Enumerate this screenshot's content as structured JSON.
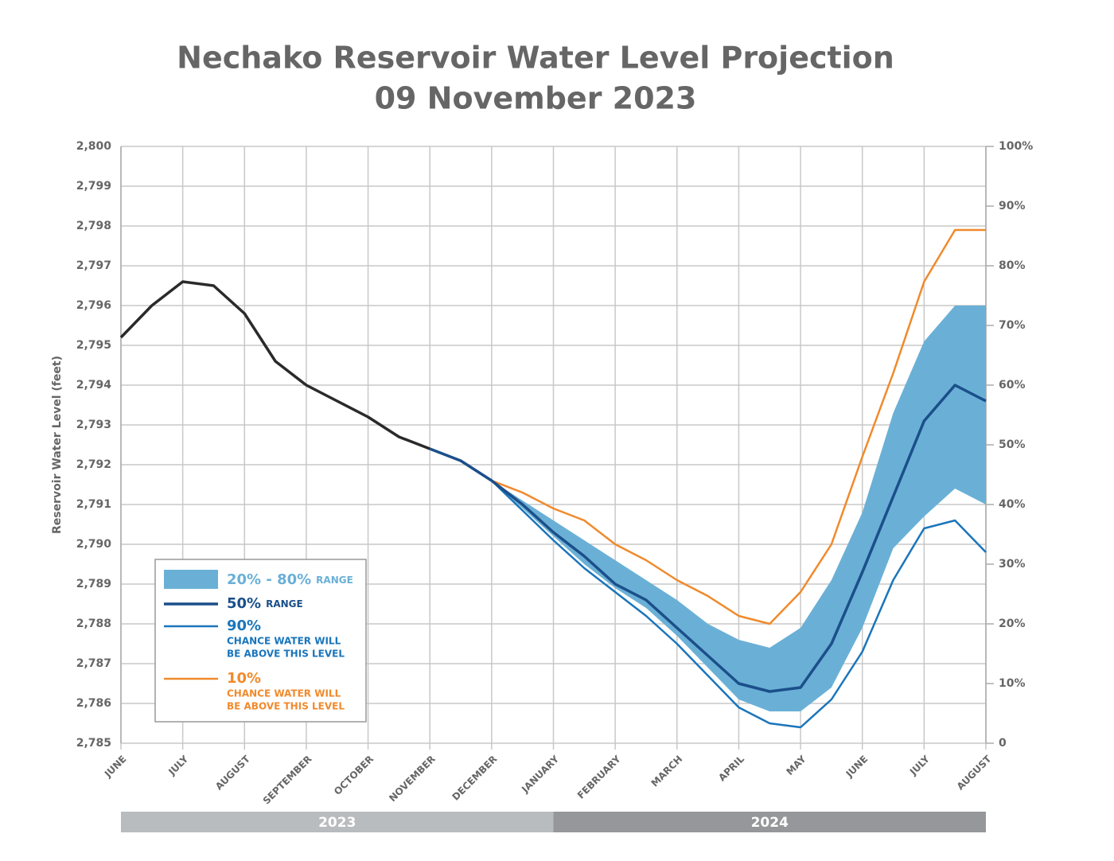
{
  "chart_data": {
    "type": "line",
    "title": "Nechako Reservoir Water Level Projection",
    "subtitle": "09 November 2023",
    "y_label": "Reservoir Water Level (feet)",
    "categories": [
      "JUNE",
      null,
      "JULY",
      null,
      "AUGUST",
      null,
      "SEPTEMBER",
      null,
      "OCTOBER",
      null,
      "NOVEMBER",
      null,
      "DECEMBER",
      null,
      "JANUARY",
      null,
      "FEBRUARY",
      null,
      "MARCH",
      null,
      "APRIL",
      null,
      "MAY",
      null,
      "JUNE",
      null,
      "JULY",
      null,
      "AUGUST"
    ],
    "years": [
      "2023",
      "2024"
    ],
    "ylim": [
      2785,
      2800
    ],
    "yticks": [
      {
        "value": 2785,
        "label": "2,785"
      },
      {
        "value": 2786,
        "label": "2,786"
      },
      {
        "value": 2787,
        "label": "2,787"
      },
      {
        "value": 2788,
        "label": "2,788"
      },
      {
        "value": 2789,
        "label": "2,789"
      },
      {
        "value": 2790,
        "label": "2,790"
      },
      {
        "value": 2791,
        "label": "2,791"
      },
      {
        "value": 2792,
        "label": "2,792"
      },
      {
        "value": 2793,
        "label": "2,793"
      },
      {
        "value": 2794,
        "label": "2,794"
      },
      {
        "value": 2795,
        "label": "2,795"
      },
      {
        "value": 2796,
        "label": "2,796"
      },
      {
        "value": 2797,
        "label": "2,797"
      },
      {
        "value": 2798,
        "label": "2,798"
      },
      {
        "value": 2799,
        "label": "2,799"
      },
      {
        "value": 2800,
        "label": "2,800"
      }
    ],
    "y2lim": [
      0,
      100
    ],
    "y2ticks": [
      0,
      {
        "value": 10,
        "label": "10%"
      },
      {
        "value": 20,
        "label": "20%"
      },
      {
        "value": 30,
        "label": "30%"
      },
      {
        "value": 40,
        "label": "40%"
      },
      {
        "value": 50,
        "label": "50%"
      },
      {
        "value": 60,
        "label": "60%"
      },
      {
        "value": 70,
        "label": "70%"
      },
      {
        "value": 80,
        "label": "80%"
      },
      {
        "value": 90,
        "label": "90%"
      },
      {
        "value": 100,
        "label": "100%"
      }
    ],
    "grid": true,
    "legend": "lower left",
    "band": {
      "name": "20% - 80%",
      "note": "RANGE",
      "color": "#6ab0d6",
      "low": [
        null,
        null,
        null,
        null,
        null,
        null,
        null,
        null,
        null,
        null,
        null,
        2792.1,
        2791.6,
        2790.9,
        2790.2,
        2789.5,
        2788.9,
        2788.4,
        2787.7,
        2786.9,
        2786.1,
        2785.8,
        2785.8,
        2786.4,
        2787.9,
        2789.9,
        2790.7,
        2791.4,
        2791.0
      ],
      "high": [
        null,
        null,
        null,
        null,
        null,
        null,
        null,
        null,
        null,
        null,
        null,
        2792.1,
        2791.6,
        2791.1,
        2790.6,
        2790.1,
        2789.6,
        2789.1,
        2788.6,
        2788.0,
        2787.6,
        2787.4,
        2787.9,
        2789.1,
        2790.8,
        2793.3,
        2795.1,
        2796.0,
        2796.0
      ]
    },
    "series": [
      {
        "color": "#2a2a2a",
        "width": 3.5,
        "values": [
          2795.2,
          2796.0,
          2796.6,
          2796.5,
          2795.8,
          2794.6,
          2794.0,
          2793.6,
          2793.2,
          2792.7,
          2792.4,
          null,
          null,
          null,
          null,
          null,
          null,
          null,
          null,
          null,
          null,
          null,
          null,
          null,
          null,
          null,
          null,
          null,
          null
        ]
      },
      {
        "name": "10%",
        "description": [
          "CHANCE WATER WILL",
          "BE ABOVE THIS LEVEL"
        ],
        "color": "#f08a2c",
        "width": 2.5,
        "values": [
          null,
          null,
          null,
          null,
          null,
          null,
          null,
          null,
          null,
          null,
          2792.4,
          2792.1,
          2791.6,
          2791.3,
          2790.9,
          2790.6,
          2790.0,
          2789.6,
          2789.1,
          2788.7,
          2788.2,
          2788.0,
          2788.8,
          2790.0,
          2792.2,
          2794.3,
          2796.6,
          2797.9,
          2797.9
        ]
      },
      {
        "name": "90%",
        "description": [
          "CHANCE WATER WILL",
          "BE ABOVE THIS LEVEL"
        ],
        "color": "#1a75bb",
        "width": 2.5,
        "values": [
          null,
          null,
          null,
          null,
          null,
          null,
          null,
          null,
          null,
          null,
          2792.4,
          2792.1,
          2791.6,
          2790.85,
          2790.1,
          2789.4,
          2788.8,
          2788.2,
          2787.5,
          2786.7,
          2785.9,
          2785.5,
          2785.4,
          2786.1,
          2787.3,
          2789.1,
          2790.4,
          2790.6,
          2789.8
        ]
      },
      {
        "name": "50%",
        "note": "RANGE",
        "color": "#1b4f8a",
        "width": 3.5,
        "values": [
          null,
          null,
          null,
          null,
          null,
          null,
          null,
          null,
          null,
          null,
          2792.4,
          2792.1,
          2791.6,
          2791.0,
          2790.3,
          2789.7,
          2789.0,
          2788.6,
          2787.9,
          2787.2,
          2786.5,
          2786.3,
          2786.4,
          2787.5,
          2789.3,
          2791.2,
          2793.1,
          2794.0,
          2793.6
        ]
      }
    ]
  }
}
